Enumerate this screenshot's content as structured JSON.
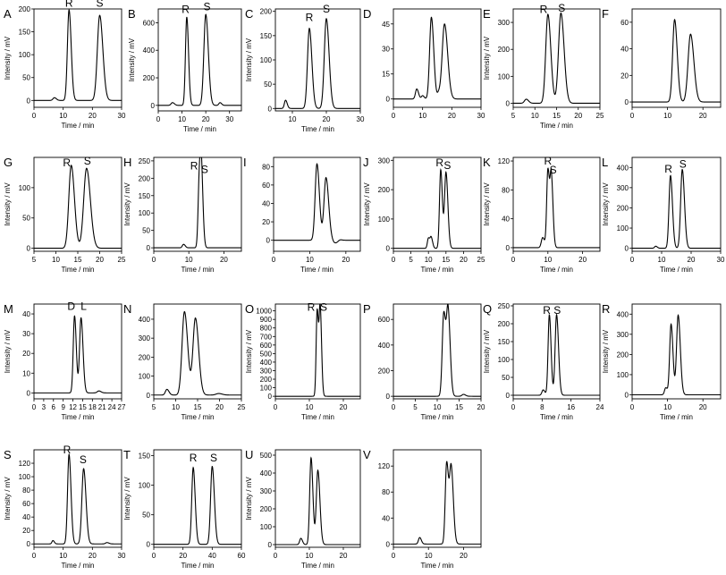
{
  "chart_data": [
    {
      "letter": "A",
      "type": "line",
      "xlabel": "Time / min",
      "ylabel": "Intensity / mV",
      "xlim": [
        0,
        30
      ],
      "ylim": [
        -15,
        200
      ],
      "xticks": [
        0,
        10,
        20,
        30
      ],
      "yticks": [
        0,
        50,
        100,
        150,
        200
      ],
      "peaks": [
        {
          "t": 7,
          "h": 6,
          "w": 0.5
        },
        {
          "t": 12,
          "h": 198,
          "w": 0.55
        },
        {
          "t": 22.5,
          "h": 186,
          "w": 0.8
        }
      ],
      "labels": [
        {
          "text": "R",
          "x": 12,
          "y": 205
        },
        {
          "text": "S",
          "x": 22.5,
          "y": 205
        }
      ]
    },
    {
      "letter": "B",
      "type": "line",
      "xlabel": "Time / min",
      "ylabel": "Intensity / mV",
      "xlim": [
        0,
        35
      ],
      "ylim": [
        -40,
        700
      ],
      "xticks": [
        0,
        10,
        20,
        30
      ],
      "yticks": [
        0,
        200,
        400,
        600
      ],
      "peaks": [
        {
          "t": 6,
          "h": 20,
          "w": 0.6
        },
        {
          "t": 12,
          "h": 640,
          "w": 0.55
        },
        {
          "t": 20,
          "h": 660,
          "w": 0.8
        },
        {
          "t": 26,
          "h": 20,
          "w": 0.5
        }
      ],
      "labels": [
        {
          "text": "R",
          "x": 11.5,
          "y": 670
        },
        {
          "text": "S",
          "x": 20.5,
          "y": 690
        }
      ]
    },
    {
      "letter": "C",
      "type": "line",
      "xlabel": "Time / min",
      "ylabel": "Intensity / mV",
      "xlim": [
        5,
        30
      ],
      "ylim": [
        -5,
        205
      ],
      "xticks": [
        10,
        20,
        30
      ],
      "yticks": [
        0,
        50,
        100,
        150,
        200
      ],
      "peaks": [
        {
          "t": 8,
          "h": 17,
          "w": 0.35
        },
        {
          "t": 15,
          "h": 165,
          "w": 0.55
        },
        {
          "t": 20,
          "h": 185,
          "w": 0.6
        }
      ],
      "labels": [
        {
          "text": "R",
          "x": 15,
          "y": 180
        },
        {
          "text": "S",
          "x": 20,
          "y": 198
        }
      ]
    },
    {
      "letter": "D",
      "type": "line",
      "xlabel": "",
      "ylabel": "",
      "xlim": [
        0,
        30
      ],
      "ylim": [
        -5,
        54
      ],
      "xticks": [
        0,
        10,
        20,
        30
      ],
      "yticks": [
        0,
        15,
        30,
        45
      ],
      "peaks": [
        {
          "t": 8,
          "h": 6,
          "w": 0.45
        },
        {
          "t": 10,
          "h": 2,
          "w": 0.4
        },
        {
          "t": 13,
          "h": 49,
          "w": 0.6
        },
        {
          "t": 17.5,
          "h": 45,
          "w": 0.8
        },
        {
          "t": 15.5,
          "h": 3,
          "w": 0.4
        }
      ],
      "labels": []
    },
    {
      "letter": "E",
      "type": "line",
      "xlabel": "Time / min",
      "ylabel": "Intensity / mV",
      "xlim": [
        5,
        25
      ],
      "ylim": [
        -15,
        350
      ],
      "xticks": [
        5,
        10,
        15,
        20,
        25
      ],
      "yticks": [
        0,
        100,
        200,
        300
      ],
      "peaks": [
        {
          "t": 8,
          "h": 15,
          "w": 0.4
        },
        {
          "t": 13,
          "h": 330,
          "w": 0.5
        },
        {
          "t": 16,
          "h": 335,
          "w": 0.55
        }
      ],
      "labels": [
        {
          "text": "R",
          "x": 12,
          "y": 335
        },
        {
          "text": "S",
          "x": 16.2,
          "y": 340
        }
      ]
    },
    {
      "letter": "F",
      "type": "line",
      "xlabel": "",
      "ylabel": "",
      "xlim": [
        0,
        25
      ],
      "ylim": [
        -4,
        70
      ],
      "xticks": [
        0,
        10,
        20
      ],
      "yticks": [
        0,
        20,
        40,
        60
      ],
      "peaks": [
        {
          "t": 12,
          "h": 62,
          "w": 0.55
        },
        {
          "t": 16.5,
          "h": 51,
          "w": 0.7
        }
      ],
      "labels": []
    },
    {
      "letter": "G",
      "type": "line",
      "xlabel": "Time / min",
      "ylabel": "Intensity / mV",
      "xlim": [
        5,
        25
      ],
      "ylim": [
        -5,
        150
      ],
      "xticks": [
        5,
        10,
        15,
        20,
        25
      ],
      "yticks": [
        0,
        50,
        100
      ],
      "peaks": [
        {
          "t": 13.5,
          "h": 137,
          "w": 0.55
        },
        {
          "t": 17,
          "h": 132,
          "w": 0.65
        }
      ],
      "labels": [
        {
          "text": "R",
          "x": 12.5,
          "y": 135
        },
        {
          "text": "S",
          "x": 17.2,
          "y": 138
        }
      ]
    },
    {
      "letter": "H",
      "type": "line",
      "xlabel": "Time / min",
      "ylabel": "Intensity / mV",
      "xlim": [
        0,
        25
      ],
      "ylim": [
        -10,
        260
      ],
      "xticks": [
        0,
        10,
        20
      ],
      "yticks": [
        0,
        50,
        100,
        150,
        200,
        250
      ],
      "peaks": [
        {
          "t": 8.5,
          "h": 10,
          "w": 0.35
        },
        {
          "t": 13,
          "h": 195,
          "w": 0.35
        },
        {
          "t": 13.6,
          "h": 185,
          "w": 0.35
        }
      ],
      "labels": [
        {
          "text": "R",
          "x": 11.5,
          "y": 225
        },
        {
          "text": "S",
          "x": 14.5,
          "y": 215
        }
      ]
    },
    {
      "letter": "I",
      "type": "line",
      "xlabel": "Time / min",
      "ylabel": "",
      "xlim": [
        0,
        24
      ],
      "ylim": [
        -12,
        90
      ],
      "xticks": [
        0,
        10,
        20
      ],
      "yticks": [
        0,
        20,
        40,
        60,
        80
      ],
      "peaks": [
        {
          "t": 12,
          "h": 83,
          "w": 0.5
        },
        {
          "t": 14.5,
          "h": 68,
          "w": 0.55
        },
        {
          "t": 17,
          "h": -3,
          "w": 0.6
        },
        {
          "t": 18.3,
          "h": 1,
          "w": 0.4
        }
      ],
      "labels": []
    },
    {
      "letter": "J",
      "type": "line",
      "xlabel": "Time / min",
      "ylabel": "Intensity / mV",
      "xlim": [
        0,
        25
      ],
      "ylim": [
        -10,
        310
      ],
      "xticks": [
        0,
        5,
        10,
        15,
        20,
        25
      ],
      "yticks": [
        0,
        100,
        200,
        300
      ],
      "peaks": [
        {
          "t": 10,
          "h": 35,
          "w": 0.3
        },
        {
          "t": 10.8,
          "h": 35,
          "w": 0.3
        },
        {
          "t": 13.5,
          "h": 268,
          "w": 0.35
        },
        {
          "t": 15,
          "h": 258,
          "w": 0.4
        }
      ],
      "labels": [
        {
          "text": "R",
          "x": 13.2,
          "y": 280
        },
        {
          "text": "S",
          "x": 15.4,
          "y": 270
        }
      ]
    },
    {
      "letter": "K",
      "type": "line",
      "xlabel": "Time / min",
      "ylabel": "Intensity / mV",
      "xlim": [
        0,
        25
      ],
      "ylim": [
        -5,
        125
      ],
      "xticks": [
        0,
        10,
        20
      ],
      "yticks": [
        0,
        40,
        80,
        120
      ],
      "peaks": [
        {
          "t": 8.5,
          "h": 14,
          "w": 0.4
        },
        {
          "t": 10,
          "h": 108,
          "w": 0.35
        },
        {
          "t": 11,
          "h": 95,
          "w": 0.35
        }
      ],
      "labels": [
        {
          "text": "R",
          "x": 10,
          "y": 115
        },
        {
          "text": "S",
          "x": 11.5,
          "y": 103
        }
      ]
    },
    {
      "letter": "L",
      "type": "line",
      "xlabel": "Time / min",
      "ylabel": "Intensity / mV",
      "xlim": [
        0,
        30
      ],
      "ylim": [
        -15,
        450
      ],
      "xticks": [
        0,
        10,
        20,
        30
      ],
      "yticks": [
        0,
        100,
        200,
        300,
        400
      ],
      "peaks": [
        {
          "t": 8,
          "h": 10,
          "w": 0.4
        },
        {
          "t": 13,
          "h": 360,
          "w": 0.5
        },
        {
          "t": 17,
          "h": 390,
          "w": 0.55
        }
      ],
      "labels": [
        {
          "text": "R",
          "x": 12.3,
          "y": 375
        },
        {
          "text": "S",
          "x": 17.2,
          "y": 400
        }
      ]
    },
    {
      "letter": "M",
      "type": "line",
      "xlabel": "Time / min",
      "ylabel": "Intensity / mV",
      "xlim": [
        0,
        27
      ],
      "ylim": [
        -3,
        45
      ],
      "xticks": [
        0,
        3,
        6,
        9,
        12,
        15,
        18,
        21,
        24,
        27
      ],
      "yticks": [
        0,
        10,
        20,
        30,
        40
      ],
      "peaks": [
        {
          "t": 12.5,
          "h": 39,
          "w": 0.4
        },
        {
          "t": 14.5,
          "h": 38,
          "w": 0.45
        },
        {
          "t": 20,
          "h": 1,
          "w": 0.5
        }
      ],
      "labels": [
        {
          "text": "D",
          "x": 11.5,
          "y": 42
        },
        {
          "text": "L",
          "x": 15.3,
          "y": 42
        }
      ]
    },
    {
      "letter": "N",
      "type": "line",
      "xlabel": "Time / min",
      "ylabel": "",
      "xlim": [
        5,
        25
      ],
      "ylim": [
        -20,
        480
      ],
      "xticks": [
        5,
        10,
        15,
        20,
        25
      ],
      "yticks": [
        0,
        100,
        200,
        300,
        400
      ],
      "peaks": [
        {
          "t": 8,
          "h": 30,
          "w": 0.35
        },
        {
          "t": 12,
          "h": 440,
          "w": 0.55
        },
        {
          "t": 14.5,
          "h": 405,
          "w": 0.55
        },
        {
          "t": 19.8,
          "h": 8,
          "w": 0.6
        }
      ],
      "labels": []
    },
    {
      "letter": "O",
      "type": "line",
      "xlabel": "Time / min",
      "ylabel": "Intensity / mV",
      "xlim": [
        0,
        25
      ],
      "ylim": [
        -30,
        1080
      ],
      "xticks": [
        0,
        10,
        20
      ],
      "yticks": [
        0,
        100,
        200,
        300,
        400,
        500,
        600,
        700,
        800,
        900,
        1000
      ],
      "peaks": [
        {
          "t": 12.3,
          "h": 1010,
          "w": 0.3
        },
        {
          "t": 13.2,
          "h": 1000,
          "w": 0.3
        }
      ],
      "labels": [
        {
          "text": "R",
          "x": 10.5,
          "y": 1000
        },
        {
          "text": "S",
          "x": 14.2,
          "y": 1000
        }
      ]
    },
    {
      "letter": "P",
      "type": "line",
      "xlabel": "Time / min",
      "ylabel": "",
      "xlim": [
        0,
        20
      ],
      "ylim": [
        -20,
        720
      ],
      "xticks": [
        0,
        5,
        10,
        15,
        20
      ],
      "yticks": [
        0,
        200,
        400,
        600
      ],
      "peaks": [
        {
          "t": 11.5,
          "h": 650,
          "w": 0.35
        },
        {
          "t": 12.5,
          "h": 640,
          "w": 0.35
        },
        {
          "t": 16,
          "h": 15,
          "w": 0.35
        }
      ],
      "labels": []
    },
    {
      "letter": "Q",
      "type": "line",
      "xlabel": "Time / min",
      "ylabel": "Intensity / mV",
      "xlim": [
        0,
        24
      ],
      "ylim": [
        -10,
        255
      ],
      "xticks": [
        0,
        8,
        16,
        24
      ],
      "yticks": [
        0,
        50,
        100,
        150,
        200,
        250
      ],
      "peaks": [
        {
          "t": 8.3,
          "h": 15,
          "w": 0.35
        },
        {
          "t": 10,
          "h": 225,
          "w": 0.35
        },
        {
          "t": 12,
          "h": 225,
          "w": 0.4
        }
      ],
      "labels": [
        {
          "text": "R",
          "x": 9.3,
          "y": 228
        },
        {
          "text": "S",
          "x": 12.2,
          "y": 228
        }
      ]
    },
    {
      "letter": "R",
      "type": "line",
      "xlabel": "Time / min",
      "ylabel": "Intensity / mV",
      "xlim": [
        0,
        25
      ],
      "ylim": [
        -20,
        450
      ],
      "xticks": [
        0,
        10,
        20
      ],
      "yticks": [
        0,
        100,
        200,
        300,
        400
      ],
      "peaks": [
        {
          "t": 9.5,
          "h": 35,
          "w": 0.35
        },
        {
          "t": 11,
          "h": 350,
          "w": 0.4
        },
        {
          "t": 13,
          "h": 395,
          "w": 0.45
        }
      ],
      "labels": []
    },
    {
      "letter": "S",
      "type": "line",
      "xlabel": "Time / min",
      "ylabel": "Intensity / mV",
      "xlim": [
        0,
        30
      ],
      "ylim": [
        -5,
        140
      ],
      "xticks": [
        0,
        10,
        20,
        30
      ],
      "yticks": [
        0,
        20,
        40,
        60,
        80,
        100,
        120
      ],
      "peaks": [
        {
          "t": 6.5,
          "h": 5,
          "w": 0.35
        },
        {
          "t": 12,
          "h": 133,
          "w": 0.5
        },
        {
          "t": 17,
          "h": 112,
          "w": 0.6
        },
        {
          "t": 25,
          "h": 2,
          "w": 0.5
        }
      ],
      "labels": [
        {
          "text": "R",
          "x": 11.3,
          "y": 135
        },
        {
          "text": "S",
          "x": 16.8,
          "y": 120
        }
      ]
    },
    {
      "letter": "T",
      "type": "line",
      "xlabel": "Time / min",
      "ylabel": "Intensity / mV",
      "xlim": [
        0,
        60
      ],
      "ylim": [
        -5,
        160
      ],
      "xticks": [
        0,
        20,
        40,
        60
      ],
      "yticks": [
        0,
        50,
        100,
        150
      ],
      "peaks": [
        {
          "t": 27,
          "h": 130,
          "w": 1
        },
        {
          "t": 40,
          "h": 132,
          "w": 1.1
        }
      ],
      "labels": [
        {
          "text": "R",
          "x": 27,
          "y": 140
        },
        {
          "text": "S",
          "x": 41,
          "y": 140
        }
      ]
    },
    {
      "letter": "U",
      "type": "line",
      "xlabel": "Time / min",
      "ylabel": "Intensity / mV",
      "xlim": [
        0,
        25
      ],
      "ylim": [
        -15,
        530
      ],
      "xticks": [
        0,
        10,
        20
      ],
      "yticks": [
        0,
        100,
        200,
        300,
        400,
        500
      ],
      "peaks": [
        {
          "t": 7.5,
          "h": 35,
          "w": 0.35
        },
        {
          "t": 10.5,
          "h": 485,
          "w": 0.4
        },
        {
          "t": 12.5,
          "h": 415,
          "w": 0.45
        }
      ],
      "labels": []
    },
    {
      "letter": "V",
      "type": "line",
      "xlabel": "Time / min",
      "ylabel": "",
      "xlim": [
        0,
        25
      ],
      "ylim": [
        -5,
        145
      ],
      "xticks": [
        0,
        10,
        20
      ],
      "yticks": [
        0,
        40,
        80,
        120
      ],
      "peaks": [
        {
          "t": 7.5,
          "h": 10,
          "w": 0.35
        },
        {
          "t": 15.2,
          "h": 125,
          "w": 0.4
        },
        {
          "t": 16.5,
          "h": 116,
          "w": 0.45
        }
      ],
      "labels": []
    }
  ]
}
